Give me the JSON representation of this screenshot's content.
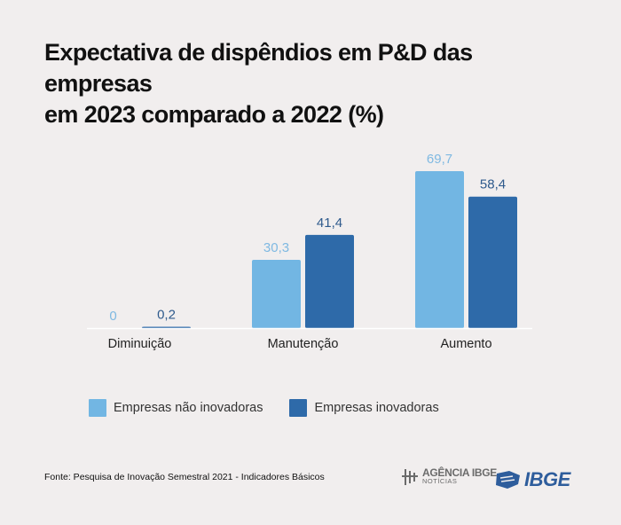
{
  "title_lines": [
    "Expectativa de dispêndios em P&D das empresas",
    "em 2023 comparado a 2022 (%)"
  ],
  "source": "Fonte: Pesquisa de Inovação Semestral 2021 - Indicadores Básicos",
  "logos": {
    "agencia_main": "AGÊNCIA IBGE",
    "agencia_sub": "NOTÍCIAS",
    "ibge": "IBGE"
  },
  "colors": {
    "series1": "#72b6e3",
    "series2": "#2e6aa9",
    "label1": "#7fb9e2",
    "label2": "#2e5a8c"
  },
  "chart_data": {
    "type": "bar",
    "title": "Expectativa de dispêndios em P&D das empresas em 2023 comparado a 2022 (%)",
    "categories": [
      "Diminuição",
      "Manutenção",
      "Aumento"
    ],
    "series": [
      {
        "name": "Empresas não inovadoras",
        "values": [
          0,
          30.3,
          69.7
        ],
        "labels": [
          "0",
          "30,3",
          "69,7"
        ]
      },
      {
        "name": "Empresas inovadoras",
        "values": [
          0.2,
          41.4,
          58.4
        ],
        "labels": [
          "0,2",
          "41,4",
          "58,4"
        ]
      }
    ],
    "ylim": [
      0,
      69.7
    ],
    "legend_position": "bottom-left",
    "grid": false
  }
}
